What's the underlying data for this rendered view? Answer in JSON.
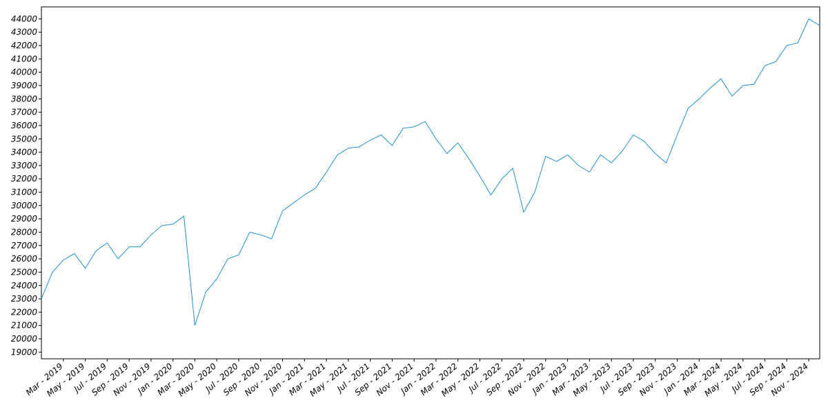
{
  "chart_data": {
    "type": "line",
    "x": [
      "2019-01",
      "2019-02",
      "2019-03",
      "2019-04",
      "2019-05",
      "2019-06",
      "2019-07",
      "2019-08",
      "2019-09",
      "2019-10",
      "2019-11",
      "2019-12",
      "2020-01",
      "2020-02",
      "2020-03",
      "2020-04",
      "2020-05",
      "2020-06",
      "2020-07",
      "2020-08",
      "2020-09",
      "2020-10",
      "2020-11",
      "2020-12",
      "2021-01",
      "2021-02",
      "2021-03",
      "2021-04",
      "2021-05",
      "2021-06",
      "2021-07",
      "2021-08",
      "2021-09",
      "2021-10",
      "2021-11",
      "2021-12",
      "2022-01",
      "2022-02",
      "2022-03",
      "2022-04",
      "2022-05",
      "2022-06",
      "2022-07",
      "2022-08",
      "2022-09",
      "2022-10",
      "2022-11",
      "2022-12",
      "2023-01",
      "2023-02",
      "2023-03",
      "2023-04",
      "2023-05",
      "2023-06",
      "2023-07",
      "2023-08",
      "2023-09",
      "2023-10",
      "2023-11",
      "2023-12",
      "2024-01",
      "2024-02",
      "2024-03",
      "2024-04",
      "2024-05",
      "2024-06",
      "2024-07",
      "2024-08",
      "2024-09",
      "2024-10",
      "2024-11",
      "2024-12"
    ],
    "series": [
      {
        "color": "#1f8fd6",
        "values": [
          23000,
          25000,
          25900,
          26400,
          25300,
          26600,
          27200,
          26000,
          26900,
          26900,
          27800,
          28500,
          28600,
          29200,
          21000,
          23500,
          24500,
          26000,
          26300,
          28000,
          27800,
          27500,
          29600,
          30200,
          30800,
          31300,
          32500,
          33800,
          34300,
          34400,
          34900,
          35300,
          34500,
          35800,
          35900,
          36300,
          35000,
          33900,
          34700,
          33500,
          32200,
          30800,
          32000,
          32800,
          29500,
          31000,
          33700,
          33300,
          33800,
          33000,
          32500,
          33800,
          33200,
          34100,
          35300,
          34800,
          33900,
          33200,
          35300,
          37300,
          38000,
          38800,
          39500,
          38200,
          39000,
          39100,
          40500,
          40800,
          42000,
          42200,
          44000,
          43500
        ]
      }
    ],
    "xlim": [
      "2019-01",
      "2024-12"
    ],
    "xticks": [
      {
        "value": "2019-03",
        "label": "Mar - 2019"
      },
      {
        "value": "2019-05",
        "label": "May - 2019"
      },
      {
        "value": "2019-07",
        "label": "Jul - 2019"
      },
      {
        "value": "2019-09",
        "label": "Sep - 2019"
      },
      {
        "value": "2019-11",
        "label": "Nov - 2019"
      },
      {
        "value": "2020-01",
        "label": "Jan - 2020"
      },
      {
        "value": "2020-03",
        "label": "Mar - 2020"
      },
      {
        "value": "2020-05",
        "label": "May - 2020"
      },
      {
        "value": "2020-07",
        "label": "Jul - 2020"
      },
      {
        "value": "2020-09",
        "label": "Sep - 2020"
      },
      {
        "value": "2020-11",
        "label": "Nov - 2020"
      },
      {
        "value": "2021-01",
        "label": "Jan - 2021"
      },
      {
        "value": "2021-03",
        "label": "Mar - 2021"
      },
      {
        "value": "2021-05",
        "label": "May - 2021"
      },
      {
        "value": "2021-07",
        "label": "Jul - 2021"
      },
      {
        "value": "2021-09",
        "label": "Sep - 2021"
      },
      {
        "value": "2021-11",
        "label": "Nov - 2021"
      },
      {
        "value": "2022-01",
        "label": "Jan - 2022"
      },
      {
        "value": "2022-03",
        "label": "Mar - 2022"
      },
      {
        "value": "2022-05",
        "label": "May - 2022"
      },
      {
        "value": "2022-07",
        "label": "Jul - 2022"
      },
      {
        "value": "2022-09",
        "label": "Sep - 2022"
      },
      {
        "value": "2022-11",
        "label": "Nov - 2022"
      },
      {
        "value": "2023-01",
        "label": "Jan - 2023"
      },
      {
        "value": "2023-03",
        "label": "Mar - 2023"
      },
      {
        "value": "2023-05",
        "label": "May - 2023"
      },
      {
        "value": "2023-07",
        "label": "Jul - 2023"
      },
      {
        "value": "2023-09",
        "label": "Sep - 2023"
      },
      {
        "value": "2023-11",
        "label": "Nov - 2023"
      },
      {
        "value": "2024-01",
        "label": "Jan - 2024"
      },
      {
        "value": "2024-03",
        "label": "Mar - 2024"
      },
      {
        "value": "2024-05",
        "label": "May - 2024"
      },
      {
        "value": "2024-07",
        "label": "Jul - 2024"
      },
      {
        "value": "2024-09",
        "label": "Sep - 2024"
      },
      {
        "value": "2024-11",
        "label": "Nov - 2024"
      }
    ],
    "ylim": [
      18500,
      44900
    ],
    "yticks": [
      19000,
      20000,
      21000,
      22000,
      23000,
      24000,
      25000,
      26000,
      27000,
      28000,
      29000,
      30000,
      31000,
      32000,
      33000,
      34000,
      35000,
      36000,
      37000,
      38000,
      39000,
      40000,
      41000,
      42000,
      43000,
      44000
    ],
    "grid": false
  }
}
